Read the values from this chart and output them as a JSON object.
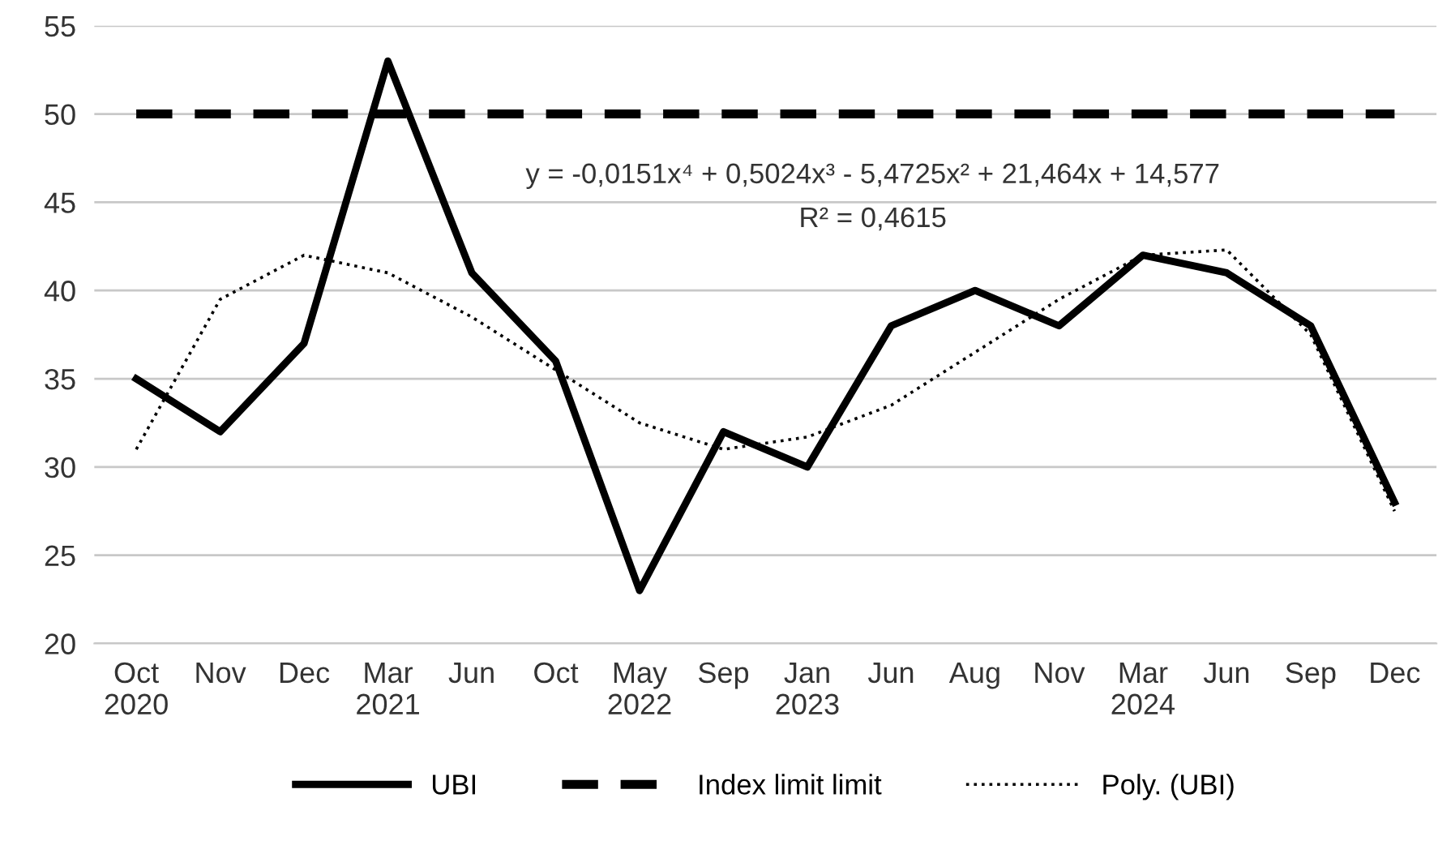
{
  "chart_data": {
    "type": "line",
    "categories": [
      "Oct\n2020",
      "Nov",
      "Dec",
      "Mar\n2021",
      "Jun",
      "Oct",
      "May\n2022",
      "Sep",
      "Jan\n2023",
      "Jun",
      "Aug",
      "Nov",
      "Mar\n2024",
      "Jun",
      "Sep",
      "Dec"
    ],
    "ylim": [
      20,
      55
    ],
    "yticks": [
      20,
      25,
      30,
      35,
      40,
      45,
      50,
      55
    ],
    "grid": "y",
    "legend": "bottom",
    "series": [
      {
        "name": "UBI",
        "color": "#000000",
        "line_style": "solid",
        "values": [
          35,
          32,
          37,
          53,
          41,
          36,
          23,
          32,
          30,
          38,
          40,
          38,
          42,
          41,
          38,
          28
        ]
      },
      {
        "name": "Index limit limit",
        "color": "#000000",
        "line_style": "dashed",
        "values": [
          50,
          50,
          50,
          50,
          50,
          50,
          50,
          50,
          50,
          50,
          50,
          50,
          50,
          50,
          50,
          50
        ]
      },
      {
        "name": "Poly. (UBI)",
        "color": "#000000",
        "line_style": "dotted",
        "values": [
          31,
          39.5,
          42,
          41,
          38.5,
          35.5,
          32.5,
          31,
          31.7,
          33.5,
          36.5,
          39.5,
          42,
          42.3,
          37.5,
          27.5
        ]
      }
    ],
    "annotations": [
      "y = -0,0151x⁴ + 0,5024x³ - 5,4725x² + 21,464x + 14,577",
      "R² = 0,4615"
    ]
  }
}
